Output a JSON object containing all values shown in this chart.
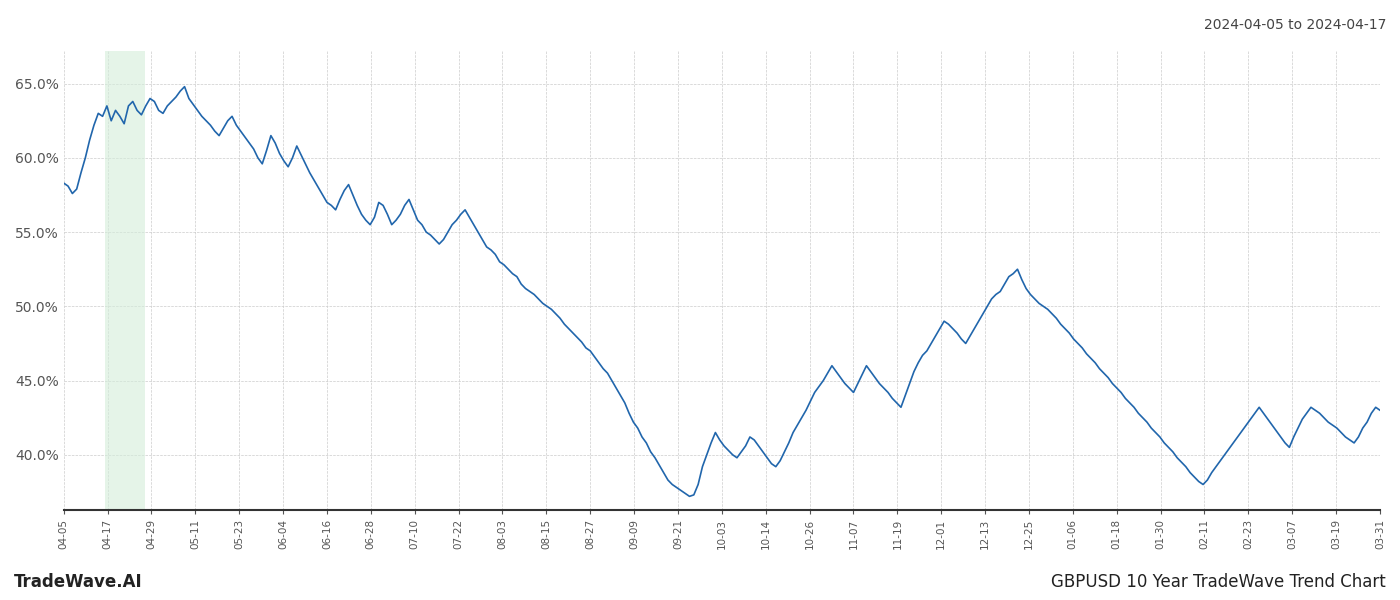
{
  "title_right": "2024-04-05 to 2024-04-17",
  "footer_left": "TradeWave.AI",
  "footer_right": "GBPUSD 10 Year TradeWave Trend Chart",
  "line_color": "#2166ac",
  "highlight_color": "#d4edda",
  "highlight_alpha": 0.6,
  "background_color": "#ffffff",
  "grid_color": "#cccccc",
  "ylim": [
    0.363,
    0.672
  ],
  "yticks": [
    0.4,
    0.45,
    0.5,
    0.55,
    0.6,
    0.65
  ],
  "ytick_labels": [
    "40.0%",
    "45.0%",
    "50.0%",
    "55.0%",
    "60.0%",
    "65.0%"
  ],
  "xtick_labels": [
    "04-05",
    "04-17",
    "04-29",
    "05-11",
    "05-23",
    "06-04",
    "06-16",
    "06-28",
    "07-10",
    "07-22",
    "08-03",
    "08-15",
    "08-27",
    "09-09",
    "09-21",
    "10-03",
    "10-14",
    "10-26",
    "11-07",
    "11-19",
    "12-01",
    "12-13",
    "12-25",
    "01-06",
    "01-18",
    "01-30",
    "02-11",
    "02-23",
    "03-07",
    "03-19",
    "03-31"
  ],
  "highlight_xstart": 0.95,
  "highlight_xend": 1.85,
  "y_values": [
    0.583,
    0.581,
    0.576,
    0.579,
    0.59,
    0.6,
    0.612,
    0.622,
    0.63,
    0.628,
    0.635,
    0.625,
    0.632,
    0.628,
    0.623,
    0.635,
    0.638,
    0.632,
    0.629,
    0.635,
    0.64,
    0.638,
    0.632,
    0.63,
    0.635,
    0.638,
    0.641,
    0.645,
    0.648,
    0.64,
    0.636,
    0.632,
    0.628,
    0.625,
    0.622,
    0.618,
    0.615,
    0.62,
    0.625,
    0.628,
    0.622,
    0.618,
    0.614,
    0.61,
    0.606,
    0.6,
    0.596,
    0.605,
    0.615,
    0.61,
    0.603,
    0.598,
    0.594,
    0.6,
    0.608,
    0.602,
    0.596,
    0.59,
    0.585,
    0.58,
    0.575,
    0.57,
    0.568,
    0.565,
    0.572,
    0.578,
    0.582,
    0.575,
    0.568,
    0.562,
    0.558,
    0.555,
    0.56,
    0.57,
    0.568,
    0.562,
    0.555,
    0.558,
    0.562,
    0.568,
    0.572,
    0.565,
    0.558,
    0.555,
    0.55,
    0.548,
    0.545,
    0.542,
    0.545,
    0.55,
    0.555,
    0.558,
    0.562,
    0.565,
    0.56,
    0.555,
    0.55,
    0.545,
    0.54,
    0.538,
    0.535,
    0.53,
    0.528,
    0.525,
    0.522,
    0.52,
    0.515,
    0.512,
    0.51,
    0.508,
    0.505,
    0.502,
    0.5,
    0.498,
    0.495,
    0.492,
    0.488,
    0.485,
    0.482,
    0.479,
    0.476,
    0.472,
    0.47,
    0.466,
    0.462,
    0.458,
    0.455,
    0.45,
    0.445,
    0.44,
    0.435,
    0.428,
    0.422,
    0.418,
    0.412,
    0.408,
    0.402,
    0.398,
    0.393,
    0.388,
    0.383,
    0.38,
    0.378,
    0.376,
    0.374,
    0.372,
    0.373,
    0.38,
    0.392,
    0.4,
    0.408,
    0.415,
    0.41,
    0.406,
    0.403,
    0.4,
    0.398,
    0.402,
    0.406,
    0.412,
    0.41,
    0.406,
    0.402,
    0.398,
    0.394,
    0.392,
    0.396,
    0.402,
    0.408,
    0.415,
    0.42,
    0.425,
    0.43,
    0.436,
    0.442,
    0.446,
    0.45,
    0.455,
    0.46,
    0.456,
    0.452,
    0.448,
    0.445,
    0.442,
    0.448,
    0.454,
    0.46,
    0.456,
    0.452,
    0.448,
    0.445,
    0.442,
    0.438,
    0.435,
    0.432,
    0.44,
    0.448,
    0.456,
    0.462,
    0.467,
    0.47,
    0.475,
    0.48,
    0.485,
    0.49,
    0.488,
    0.485,
    0.482,
    0.478,
    0.475,
    0.48,
    0.485,
    0.49,
    0.495,
    0.5,
    0.505,
    0.508,
    0.51,
    0.515,
    0.52,
    0.522,
    0.525,
    0.518,
    0.512,
    0.508,
    0.505,
    0.502,
    0.5,
    0.498,
    0.495,
    0.492,
    0.488,
    0.485,
    0.482,
    0.478,
    0.475,
    0.472,
    0.468,
    0.465,
    0.462,
    0.458,
    0.455,
    0.452,
    0.448,
    0.445,
    0.442,
    0.438,
    0.435,
    0.432,
    0.428,
    0.425,
    0.422,
    0.418,
    0.415,
    0.412,
    0.408,
    0.405,
    0.402,
    0.398,
    0.395,
    0.392,
    0.388,
    0.385,
    0.382,
    0.38,
    0.383,
    0.388,
    0.392,
    0.396,
    0.4,
    0.404,
    0.408,
    0.412,
    0.416,
    0.42,
    0.424,
    0.428,
    0.432,
    0.428,
    0.424,
    0.42,
    0.416,
    0.412,
    0.408,
    0.405,
    0.412,
    0.418,
    0.424,
    0.428,
    0.432,
    0.43,
    0.428,
    0.425,
    0.422,
    0.42,
    0.418,
    0.415,
    0.412,
    0.41,
    0.408,
    0.412,
    0.418,
    0.422,
    0.428,
    0.432,
    0.43
  ]
}
